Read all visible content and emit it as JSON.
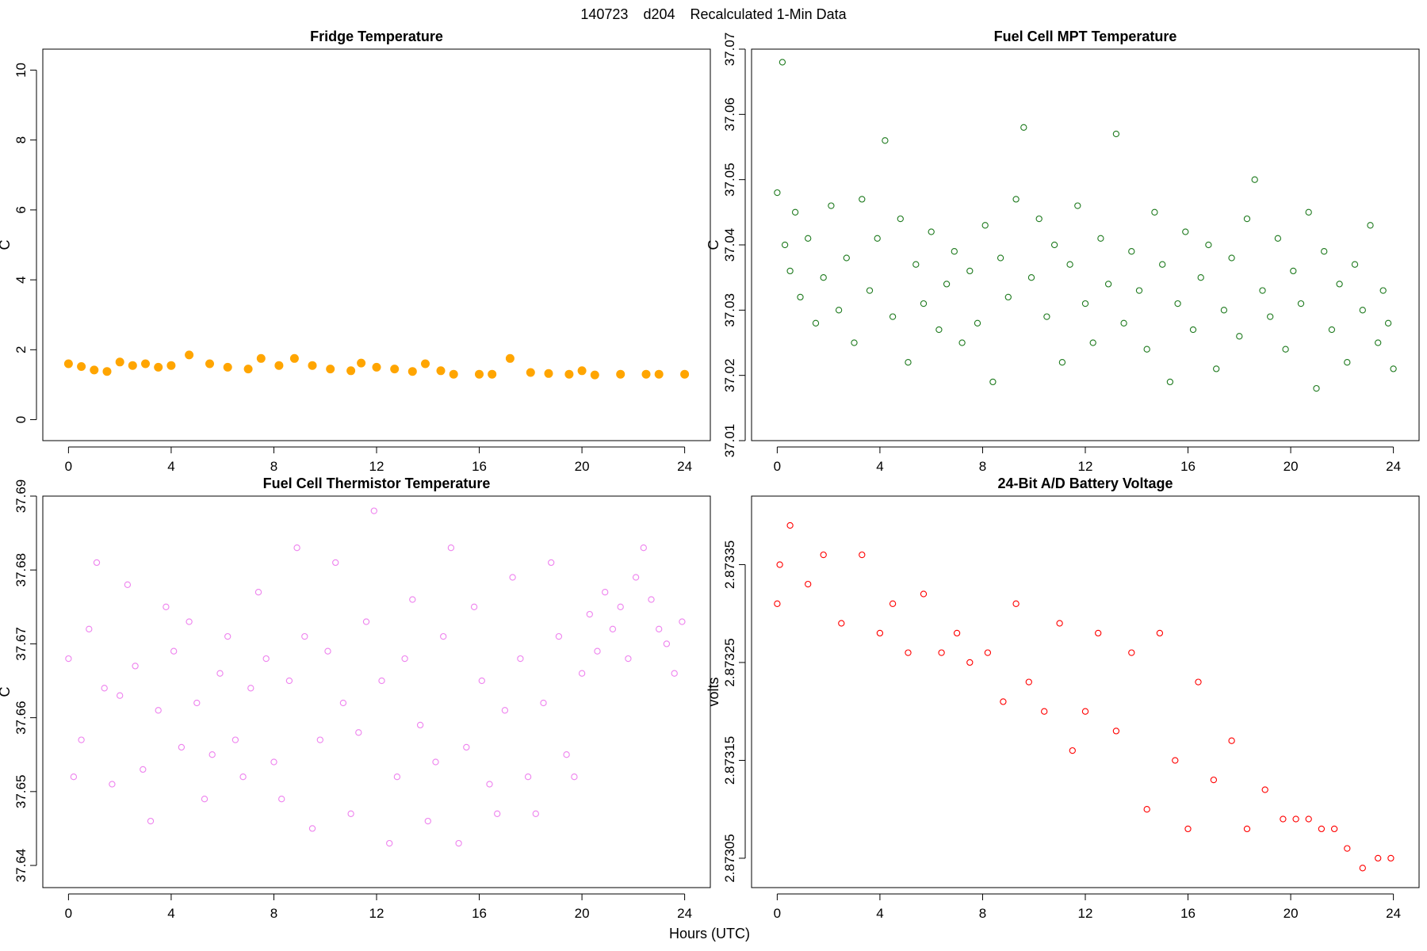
{
  "figure": {
    "title_id": "140723",
    "title_station": "d204",
    "title_text": "Recalculated 1-Min Data",
    "shared_xlabel": "Hours (UTC)"
  },
  "chart_data": [
    {
      "id": "fridge",
      "type": "scatter",
      "title": "Fridge Temperature",
      "xlabel": "",
      "ylabel": "C",
      "xlim": [
        -1,
        25
      ],
      "ylim": [
        -0.6,
        10.6
      ],
      "xticks": [
        0,
        4,
        8,
        12,
        16,
        20,
        24
      ],
      "yticks": [
        0,
        2,
        4,
        6,
        8,
        10
      ],
      "yticks_rotated": true,
      "color": "#FFA500",
      "marker": "filled",
      "series": [
        {
          "name": "Fridge Temperature",
          "x": [
            0,
            0.5,
            1,
            1.5,
            2,
            2.5,
            3,
            3.5,
            4,
            4.7,
            5.5,
            6.2,
            7,
            7.5,
            8.2,
            8.8,
            9.5,
            10.2,
            11,
            11.4,
            12,
            12.7,
            13.4,
            13.9,
            14.5,
            15,
            16,
            16.5,
            17.2,
            18,
            18.7,
            19.5,
            20.0,
            20.5,
            21.5,
            22.5,
            23,
            24
          ],
          "y": [
            1.6,
            1.52,
            1.42,
            1.38,
            1.65,
            1.55,
            1.6,
            1.5,
            1.55,
            1.85,
            1.6,
            1.5,
            1.45,
            1.75,
            1.55,
            1.75,
            1.55,
            1.45,
            1.4,
            1.62,
            1.5,
            1.45,
            1.38,
            1.6,
            1.4,
            1.3,
            1.3,
            1.3,
            1.75,
            1.35,
            1.32,
            1.3,
            1.4,
            1.28,
            1.3,
            1.3,
            1.3,
            1.3
          ]
        }
      ]
    },
    {
      "id": "mpt",
      "type": "scatter",
      "title": "Fuel Cell MPT Temperature",
      "xlabel": "",
      "ylabel": "C",
      "xlim": [
        -1,
        25
      ],
      "ylim": [
        37.01,
        37.07
      ],
      "xticks": [
        0,
        4,
        8,
        12,
        16,
        20,
        24
      ],
      "yticks": [
        37.01,
        37.02,
        37.03,
        37.04,
        37.05,
        37.06,
        37.07
      ],
      "yticks_rotated": true,
      "color": "#1E7A1E",
      "marker": "open",
      "series": [
        {
          "name": "Fuel Cell MPT Temperature",
          "x": [
            0.0,
            0.2,
            0.3,
            0.5,
            0.7,
            0.9,
            1.2,
            1.5,
            1.8,
            2.1,
            2.4,
            2.7,
            3.0,
            3.3,
            3.6,
            3.9,
            4.2,
            4.5,
            4.8,
            5.1,
            5.4,
            5.7,
            6.0,
            6.3,
            6.6,
            6.9,
            7.2,
            7.5,
            7.8,
            8.1,
            8.4,
            8.7,
            9.0,
            9.3,
            9.6,
            9.9,
            10.2,
            10.5,
            10.8,
            11.1,
            11.4,
            11.7,
            12.0,
            12.3,
            12.6,
            12.9,
            13.2,
            13.5,
            13.8,
            14.1,
            14.4,
            14.7,
            15.0,
            15.3,
            15.6,
            15.9,
            16.2,
            16.5,
            16.8,
            17.1,
            17.4,
            17.7,
            18.0,
            18.3,
            18.6,
            18.9,
            19.2,
            19.5,
            19.8,
            20.1,
            20.4,
            20.7,
            21.0,
            21.3,
            21.6,
            21.9,
            22.2,
            22.5,
            22.8,
            23.1,
            23.4,
            23.6,
            23.8,
            24.0
          ],
          "y": [
            37.048,
            37.068,
            37.04,
            37.036,
            37.045,
            37.032,
            37.041,
            37.028,
            37.035,
            37.046,
            37.03,
            37.038,
            37.025,
            37.047,
            37.033,
            37.041,
            37.056,
            37.029,
            37.044,
            37.022,
            37.037,
            37.031,
            37.042,
            37.027,
            37.034,
            37.039,
            37.025,
            37.036,
            37.028,
            37.043,
            37.019,
            37.038,
            37.032,
            37.047,
            37.058,
            37.035,
            37.044,
            37.029,
            37.04,
            37.022,
            37.037,
            37.046,
            37.031,
            37.025,
            37.041,
            37.034,
            37.057,
            37.028,
            37.039,
            37.033,
            37.024,
            37.045,
            37.037,
            37.019,
            37.031,
            37.042,
            37.027,
            37.035,
            37.04,
            37.021,
            37.03,
            37.038,
            37.026,
            37.044,
            37.05,
            37.033,
            37.029,
            37.041,
            37.024,
            37.036,
            37.031,
            37.045,
            37.018,
            37.039,
            37.027,
            37.034,
            37.022,
            37.037,
            37.03,
            37.043,
            37.025,
            37.033,
            37.028,
            37.021
          ]
        }
      ]
    },
    {
      "id": "thermistor",
      "type": "scatter",
      "title": "Fuel Cell Thermistor Temperature",
      "xlabel": "",
      "ylabel": "C",
      "xlim": [
        -1,
        25
      ],
      "ylim": [
        37.637,
        37.69
      ],
      "xticks": [
        0,
        4,
        8,
        12,
        16,
        20,
        24
      ],
      "yticks": [
        37.64,
        37.65,
        37.66,
        37.67,
        37.68,
        37.69
      ],
      "yticks_rotated": true,
      "color": "#EE82EE",
      "marker": "open",
      "series": [
        {
          "name": "Fuel Cell Thermistor Temperature",
          "x": [
            0.0,
            0.2,
            0.5,
            0.8,
            1.1,
            1.4,
            1.7,
            2.0,
            2.3,
            2.6,
            2.9,
            3.2,
            3.5,
            3.8,
            4.1,
            4.4,
            4.7,
            5.0,
            5.3,
            5.6,
            5.9,
            6.2,
            6.5,
            6.8,
            7.1,
            7.4,
            7.7,
            8.0,
            8.3,
            8.6,
            8.9,
            9.2,
            9.5,
            9.8,
            10.1,
            10.4,
            10.7,
            11.0,
            11.3,
            11.6,
            11.9,
            12.2,
            12.5,
            12.8,
            13.1,
            13.4,
            13.7,
            14.0,
            14.3,
            14.6,
            14.9,
            15.2,
            15.5,
            15.8,
            16.1,
            16.4,
            16.7,
            17.0,
            17.3,
            17.6,
            17.9,
            18.2,
            18.5,
            18.8,
            19.1,
            19.4,
            19.7,
            20.0,
            20.3,
            20.6,
            20.9,
            21.2,
            21.5,
            21.8,
            22.1,
            22.4,
            22.7,
            23.0,
            23.3,
            23.6,
            23.9
          ],
          "y": [
            37.668,
            37.652,
            37.657,
            37.672,
            37.681,
            37.664,
            37.651,
            37.663,
            37.678,
            37.667,
            37.653,
            37.646,
            37.661,
            37.675,
            37.669,
            37.656,
            37.673,
            37.662,
            37.649,
            37.655,
            37.666,
            37.671,
            37.657,
            37.652,
            37.664,
            37.677,
            37.668,
            37.654,
            37.649,
            37.665,
            37.683,
            37.671,
            37.645,
            37.657,
            37.669,
            37.681,
            37.662,
            37.647,
            37.658,
            37.673,
            37.688,
            37.665,
            37.643,
            37.652,
            37.668,
            37.676,
            37.659,
            37.646,
            37.654,
            37.671,
            37.683,
            37.643,
            37.656,
            37.675,
            37.665,
            37.651,
            37.647,
            37.661,
            37.679,
            37.668,
            37.652,
            37.647,
            37.662,
            37.681,
            37.671,
            37.655,
            37.652,
            37.666,
            37.674,
            37.669,
            37.677,
            37.672,
            37.675,
            37.668,
            37.679,
            37.683,
            37.676,
            37.672,
            37.67,
            37.666,
            37.673
          ]
        }
      ]
    },
    {
      "id": "battery",
      "type": "scatter",
      "title": "24-Bit A/D Battery Voltage",
      "xlabel": "",
      "ylabel": "volts",
      "xlim": [
        -1,
        25
      ],
      "ylim": [
        2.87302,
        2.87342
      ],
      "xticks": [
        0,
        4,
        8,
        12,
        16,
        20,
        24
      ],
      "yticks": [
        2.87305,
        2.87315,
        2.87325,
        2.87335
      ],
      "yticks_rotated": true,
      "color": "#FF0000",
      "marker": "open",
      "series": [
        {
          "name": "24-Bit A/D Battery Voltage",
          "x": [
            0.0,
            0.1,
            0.5,
            1.2,
            1.8,
            2.5,
            3.3,
            4.0,
            4.5,
            5.1,
            5.7,
            6.4,
            7.0,
            7.5,
            8.2,
            8.8,
            9.3,
            9.8,
            10.4,
            11.0,
            11.5,
            12.0,
            12.5,
            13.2,
            13.8,
            14.4,
            14.9,
            15.5,
            16.0,
            16.4,
            17.0,
            17.7,
            18.3,
            19.0,
            19.7,
            20.2,
            20.7,
            21.2,
            21.7,
            22.2,
            22.8,
            23.4,
            23.9
          ],
          "y": [
            2.87331,
            2.87335,
            2.87339,
            2.87333,
            2.87336,
            2.87329,
            2.87336,
            2.87328,
            2.87331,
            2.87326,
            2.87332,
            2.87326,
            2.87328,
            2.87325,
            2.87326,
            2.87321,
            2.87331,
            2.87323,
            2.8732,
            2.87329,
            2.87316,
            2.8732,
            2.87328,
            2.87318,
            2.87326,
            2.8731,
            2.87328,
            2.87315,
            2.87308,
            2.87323,
            2.87313,
            2.87317,
            2.87308,
            2.87312,
            2.87309,
            2.87309,
            2.87309,
            2.87308,
            2.87308,
            2.87306,
            2.87304,
            2.87305,
            2.87305
          ]
        }
      ]
    }
  ]
}
